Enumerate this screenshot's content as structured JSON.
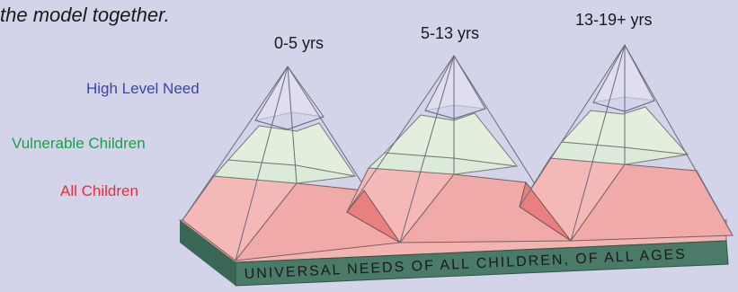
{
  "intro": {
    "text": "the model together."
  },
  "legend": {
    "high": "High Level Need",
    "vulnerable": "Vulnerable Children",
    "all": "All Children"
  },
  "ages": [
    "0-5 yrs",
    "5-13 yrs",
    "13-19+ yrs"
  ],
  "base": {
    "label": "UNIVERSAL NEEDS OF ALL CHILDREN, OF ALL AGES"
  },
  "colors": {
    "background": "#d3d3ea",
    "high_level": "#b4b8e0",
    "vulnerable": "#dcebd9",
    "all_children": "#f0b4b4",
    "base_front": "#4a7a68",
    "legend_high": "#3b46a8",
    "legend_vulnerable": "#1f9e48",
    "legend_all": "#ea2e3b"
  }
}
